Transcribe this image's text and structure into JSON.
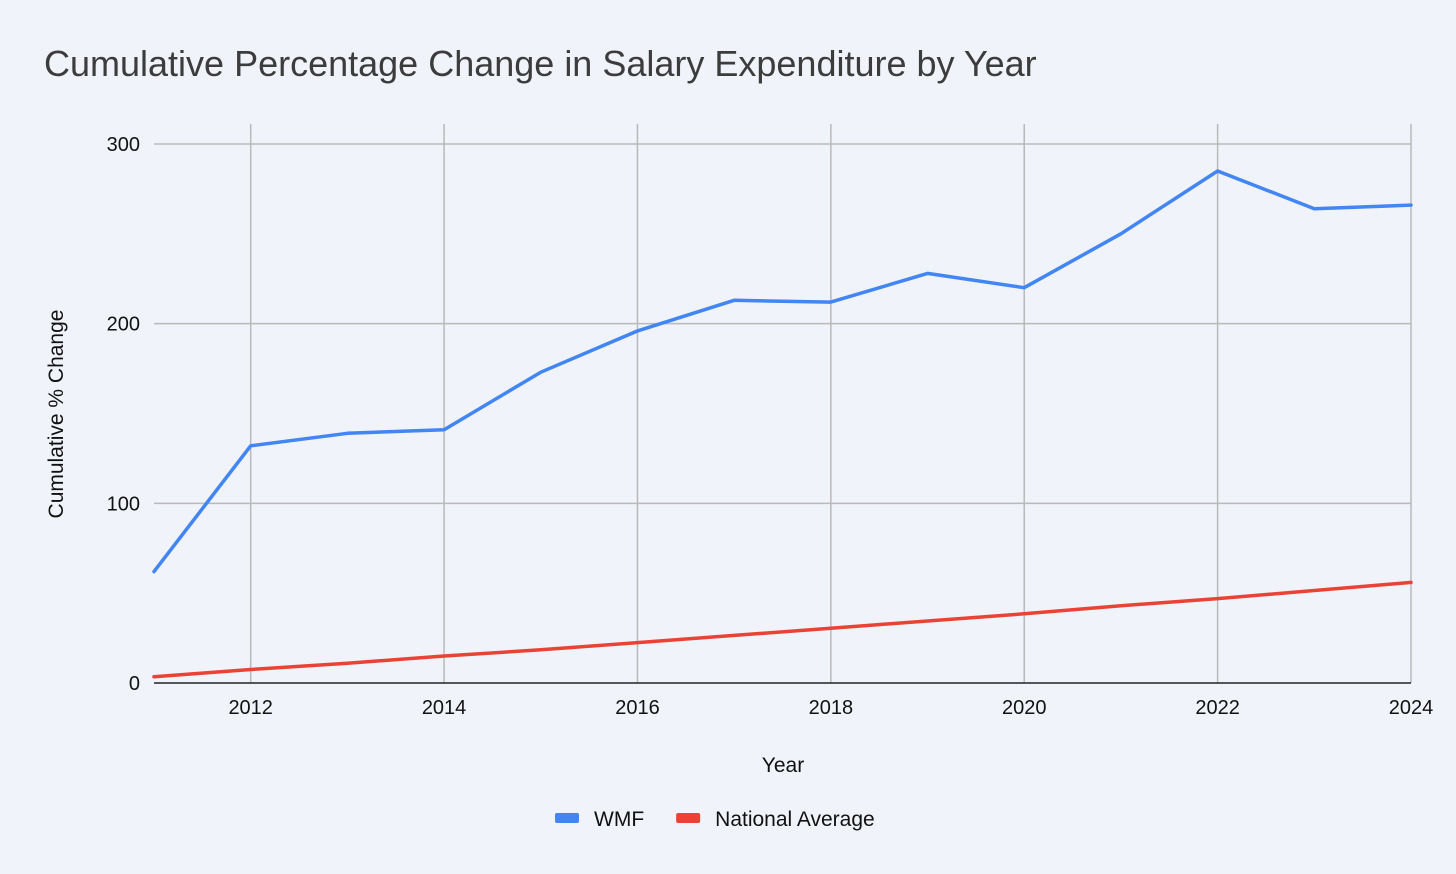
{
  "chart_data": {
    "type": "line",
    "title": "Cumulative Percentage Change in Salary Expenditure by Year",
    "xlabel": "Year",
    "ylabel": "Cumulative % Change",
    "xlim": [
      2011,
      2024
    ],
    "ylim": [
      0,
      300
    ],
    "x_ticks": [
      2012,
      2014,
      2016,
      2018,
      2020,
      2022,
      2024
    ],
    "y_ticks": [
      0,
      100,
      200,
      300
    ],
    "grid": true,
    "legend_position": "bottom",
    "x": [
      2011,
      2012,
      2013,
      2014,
      2015,
      2016,
      2017,
      2018,
      2019,
      2020,
      2021,
      2022,
      2023,
      2024
    ],
    "series": [
      {
        "name": "WMF",
        "color": "#4285f4",
        "values": [
          62,
          132,
          139,
          141,
          173,
          196,
          213,
          212,
          228,
          220,
          250,
          285,
          264,
          266
        ]
      },
      {
        "name": "National Average",
        "color": "#ea4335",
        "values": [
          3.5,
          7.5,
          11,
          15,
          18.5,
          22.5,
          26.5,
          30.5,
          34.5,
          38.5,
          43,
          47,
          51.5,
          56
        ]
      }
    ]
  }
}
